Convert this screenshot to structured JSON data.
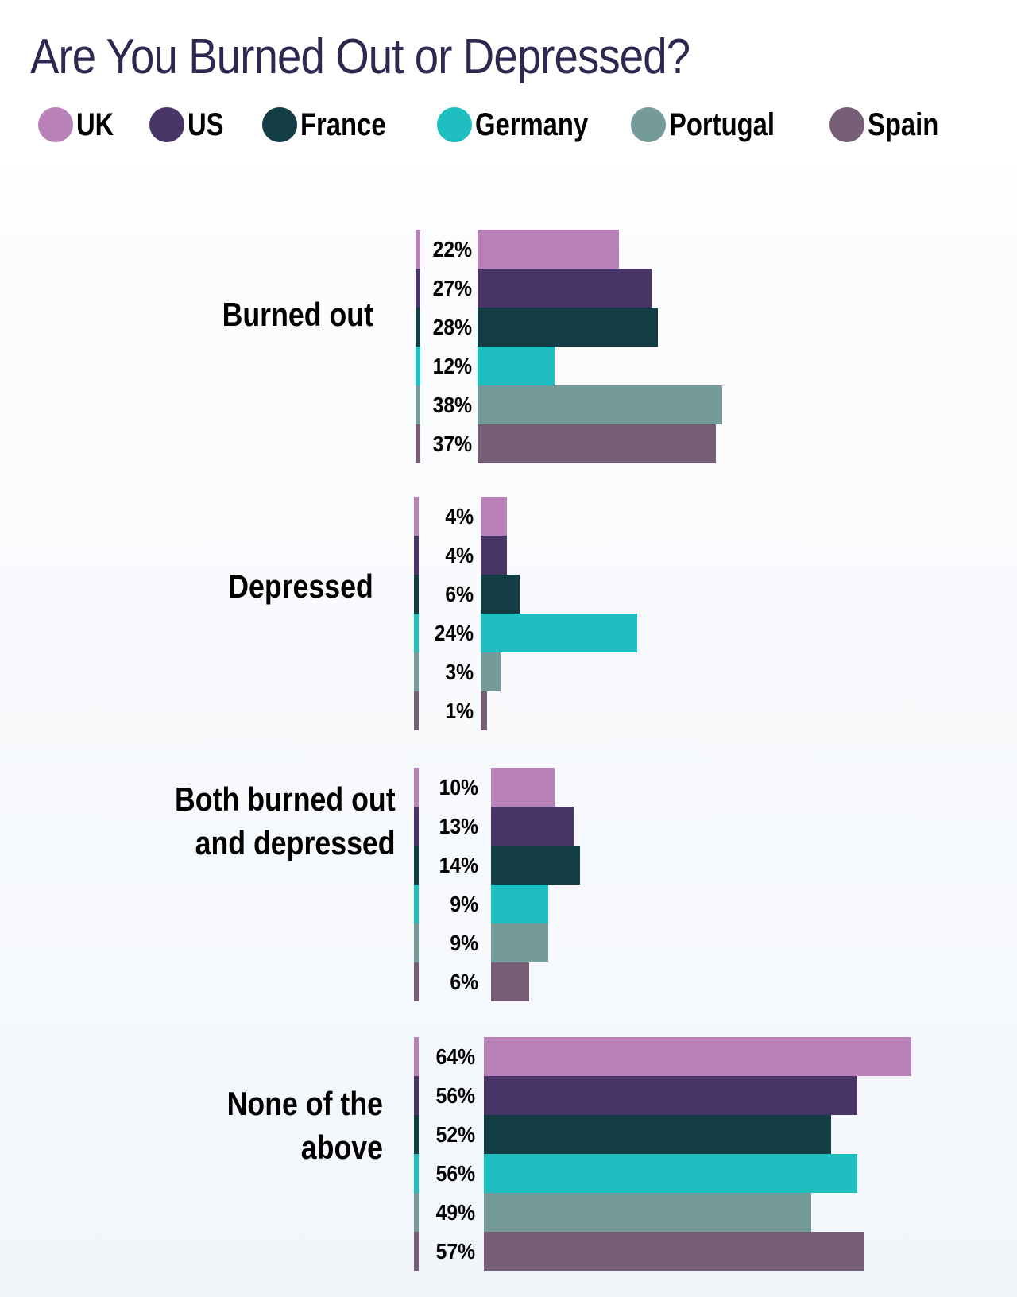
{
  "title": "Are You Burned Out or Depressed?",
  "legend": [
    {
      "label": "UK",
      "color": "#b882b9"
    },
    {
      "label": "US",
      "color": "#483467"
    },
    {
      "label": "France",
      "color": "#133d45"
    },
    {
      "label": "Germany",
      "color": "#1fbec1"
    },
    {
      "label": "Portugal",
      "color": "#749b99"
    },
    {
      "label": "Spain",
      "color": "#765e76"
    }
  ],
  "groups": [
    {
      "label": "Burned out",
      "values": [
        "22%",
        "27%",
        "28%",
        "12%",
        "38%",
        "37%"
      ]
    },
    {
      "label": "Depressed",
      "values": [
        "4%",
        "4%",
        "6%",
        "24%",
        "3%",
        "1%"
      ]
    },
    {
      "label": "Both burned out\nand depressed",
      "values": [
        "10%",
        "13%",
        "14%",
        "9%",
        "9%",
        "6%"
      ]
    },
    {
      "label": "None of the\nabove",
      "values": [
        "64%",
        "56%",
        "52%",
        "56%",
        "49%",
        "57%"
      ]
    }
  ],
  "chart_data": {
    "type": "bar",
    "orientation": "horizontal",
    "title": "Are You Burned Out or Depressed?",
    "categories": [
      "Burned out",
      "Depressed",
      "Both burned out and depressed",
      "None of the above"
    ],
    "series": [
      {
        "name": "UK",
        "color": "#b882b9",
        "values": [
          22,
          4,
          10,
          64
        ]
      },
      {
        "name": "US",
        "color": "#483467",
        "values": [
          27,
          4,
          13,
          56
        ]
      },
      {
        "name": "France",
        "color": "#133d45",
        "values": [
          28,
          6,
          14,
          52
        ]
      },
      {
        "name": "Germany",
        "color": "#1fbec1",
        "values": [
          12,
          24,
          9,
          56
        ]
      },
      {
        "name": "Portugal",
        "color": "#749b99",
        "values": [
          38,
          3,
          9,
          49
        ]
      },
      {
        "name": "Spain",
        "color": "#765e76",
        "values": [
          37,
          1,
          6,
          57
        ]
      }
    ],
    "unit": "%",
    "xlabel": "",
    "ylabel": "",
    "grid": false,
    "legend_position": "top",
    "data_labels": true
  }
}
